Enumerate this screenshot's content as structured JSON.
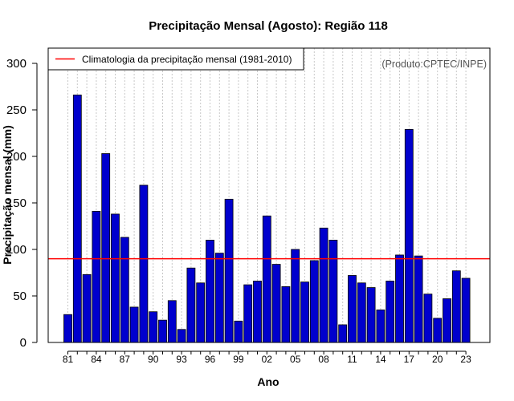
{
  "chart_data": {
    "type": "bar",
    "title": "Precipitação Mensal (Agosto): Região 118",
    "xlabel": "Ano",
    "ylabel": "Precipitação mensal (mm)",
    "credit": "(Produto:CPTEC/INPE)",
    "ylim": [
      0,
      300
    ],
    "yticks": [
      0,
      50,
      100,
      150,
      200,
      250,
      300
    ],
    "grid": "vertical dotted",
    "legend": {
      "position": "top-left",
      "entries": [
        {
          "label": "Climatologia da precipitação mensal (1981-2010)",
          "color": "#ff0000"
        }
      ]
    },
    "climatology": 90,
    "bar_color": "#0000cd",
    "line_color": "#ff0000",
    "categories": [
      "81",
      "82",
      "83",
      "84",
      "85",
      "86",
      "87",
      "88",
      "89",
      "90",
      "91",
      "92",
      "93",
      "94",
      "95",
      "96",
      "97",
      "98",
      "99",
      "00",
      "01",
      "02",
      "03",
      "04",
      "05",
      "06",
      "07",
      "08",
      "09",
      "10",
      "11",
      "12",
      "13",
      "14",
      "15",
      "16",
      "17",
      "18",
      "19",
      "20",
      "21",
      "22",
      "23"
    ],
    "xtick_labels": [
      "81",
      "84",
      "87",
      "90",
      "93",
      "96",
      "99",
      "02",
      "05",
      "08",
      "11",
      "14",
      "17",
      "20",
      "23"
    ],
    "values": [
      30,
      266,
      73,
      141,
      203,
      138,
      113,
      38,
      169,
      33,
      24,
      45,
      14,
      80,
      64,
      110,
      96,
      154,
      23,
      62,
      66,
      136,
      84,
      60,
      100,
      65,
      88,
      123,
      110,
      19,
      72,
      64,
      59,
      35,
      66,
      94,
      229,
      93,
      52,
      26,
      47,
      77,
      69
    ]
  }
}
